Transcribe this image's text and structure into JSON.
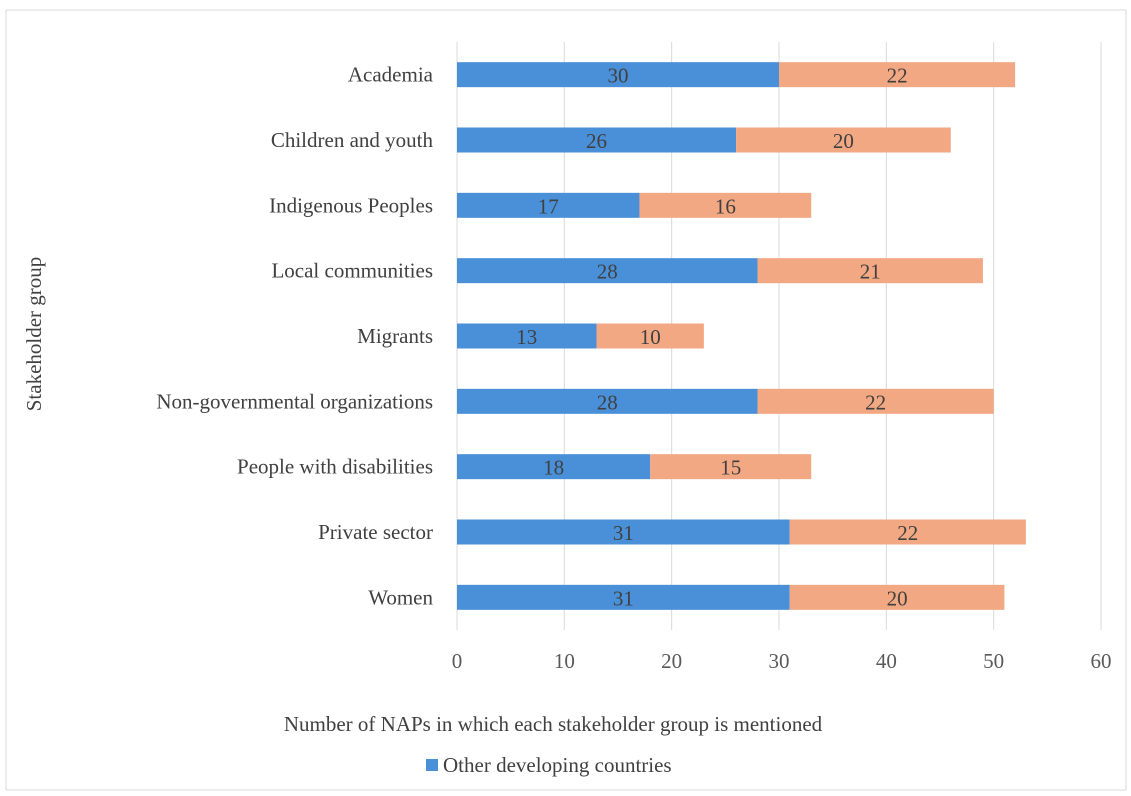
{
  "chart_data": {
    "type": "bar",
    "orientation": "horizontal",
    "stacked": true,
    "categories": [
      "Academia",
      "Children and youth",
      "Indigenous Peoples",
      "Local communities",
      "Migrants",
      "Non-governmental organizations",
      "People with disabilities",
      "Private sector",
      "Women"
    ],
    "series": [
      {
        "name": "Other developing countries",
        "color": "#4a90d9",
        "values": [
          30,
          26,
          17,
          28,
          13,
          28,
          18,
          31,
          31
        ]
      },
      {
        "color": "#f2a882",
        "values": [
          22,
          20,
          16,
          21,
          10,
          22,
          15,
          22,
          20
        ]
      }
    ],
    "title": "",
    "xlabel": "Number of NAPs in which each stakeholder group is mentioned",
    "ylabel": "Stakeholder group",
    "xlim": [
      0,
      60
    ],
    "xticks": [
      0,
      10,
      20,
      30,
      40,
      50,
      60
    ],
    "grid": "vertical",
    "legend_position": "bottom",
    "data_labels": true
  }
}
